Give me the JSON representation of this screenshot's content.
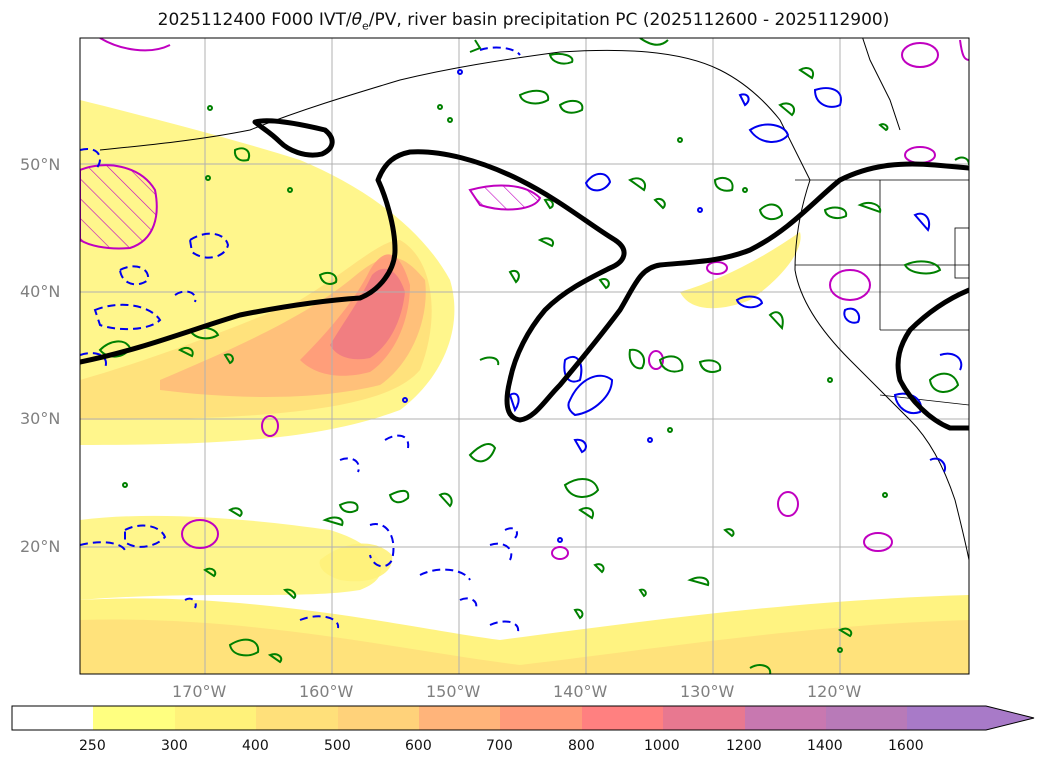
{
  "title": {
    "prefix": "2025112400 F000 IVT/",
    "theta": "θ",
    "sub": "e",
    "suffix": "/PV, river basin precipitation PC (2025112600 - 2025112900)"
  },
  "map": {
    "projection": "PlateCarree",
    "lon_range": [
      -180,
      -110
    ],
    "lat_range": [
      10,
      60
    ],
    "lat_labels": [
      "50°N",
      "40°N",
      "30°N",
      "20°N"
    ],
    "lon_labels": [
      "170°W",
      "160°W",
      "150°W",
      "140°W",
      "130°W",
      "120°W"
    ],
    "gridlines": true
  },
  "contours": {
    "pv_boundary_color": "#000000",
    "positive_color": "#008000",
    "negative_color": "#0000ff",
    "theta_color": "#c000c0"
  },
  "colorbar": {
    "variable": "IVT",
    "levels": [
      "250",
      "300",
      "400",
      "500",
      "600",
      "700",
      "800",
      "1000",
      "1200",
      "1400",
      "1600"
    ],
    "colors": [
      "#ffffff",
      "#ffff80",
      "#fff27a",
      "#ffe07a",
      "#ffd27a",
      "#ffb47a",
      "#ff9a7a",
      "#ff8080",
      "#e87890",
      "#c878b0",
      "#b87ab8",
      "#a87ac8"
    ],
    "extend": "max"
  }
}
